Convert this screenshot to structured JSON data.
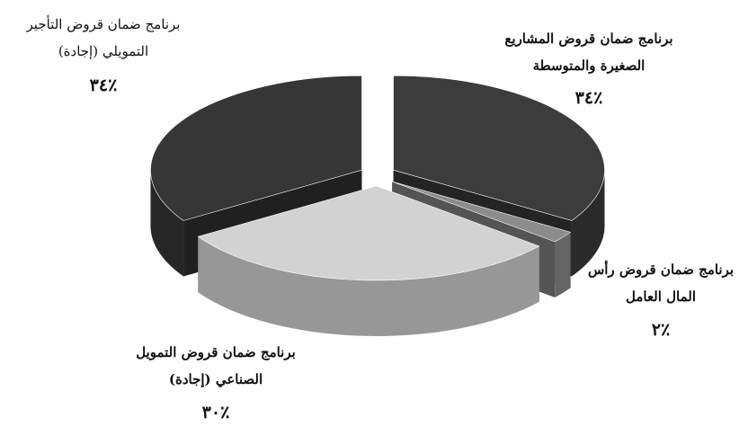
{
  "chart_data": {
    "type": "pie",
    "categories": [
      "برنامج ضمان قروض المشاريع الصغيرة والمتوسطة",
      "برنامج ضمان قروض رأس المال العامل",
      "برنامج ضمان قروض التمويل الصناعي (إجادة)",
      "برنامج ضمان قروض التأجير التمويلي (إجادة)"
    ],
    "values": [
      34,
      2,
      30,
      34
    ],
    "value_labels": [
      "٪٣٤",
      "٪٢",
      "٪٣٠",
      "٪٣٤"
    ],
    "colors": [
      "#3c3c3c",
      "#8c8c8c",
      "#d2d2d2",
      "#363636"
    ]
  }
}
